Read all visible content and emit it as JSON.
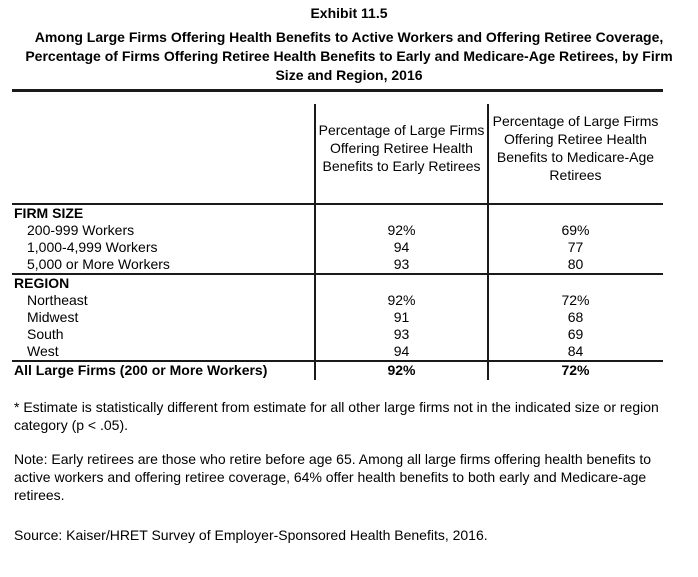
{
  "header": {
    "exhibit": "Exhibit 11.5",
    "title_lines": [
      "Among Large Firms Offering Health Benefits to Active Workers and Offering Retiree Coverage,",
      "Percentage of Firms Offering Retiree Health Benefits to Early and Medicare-Age Retirees, by Firm",
      "Size and Region, 2016"
    ]
  },
  "table": {
    "columns": {
      "early": "Percentage of Large Firms Offering Retiree Health Benefits to Early Retirees",
      "medicare": "Percentage of Large Firms Offering Retiree Health Benefits to Medicare-Age Retirees"
    },
    "rows": [
      {
        "label": "FIRM SIZE",
        "type": "section",
        "early": "",
        "medicare": ""
      },
      {
        "label": "200-999 Workers",
        "type": "data",
        "early": "92%",
        "medicare": "69%"
      },
      {
        "label": "1,000-4,999 Workers",
        "type": "data",
        "early": "94",
        "medicare": "77"
      },
      {
        "label": "5,000 or More Workers",
        "type": "data",
        "early": "93",
        "medicare": "80"
      },
      {
        "label": "REGION",
        "type": "section",
        "early": "",
        "medicare": ""
      },
      {
        "label": "Northeast",
        "type": "data",
        "early": "92%",
        "medicare": "72%"
      },
      {
        "label": "Midwest",
        "type": "data",
        "early": "91",
        "medicare": "68"
      },
      {
        "label": "South",
        "type": "data",
        "early": "93",
        "medicare": "69"
      },
      {
        "label": "West",
        "type": "data",
        "early": "94",
        "medicare": "84"
      },
      {
        "label": "All Large Firms (200 or More Workers)",
        "type": "total",
        "early": "92%",
        "medicare": "72%"
      }
    ]
  },
  "footnotes": {
    "significance": "* Estimate is statistically different from estimate for all other large firms not in the indicated size or region category (p < .05).",
    "note": "Note: Early retirees are those who retire before age 65. Among all large firms offering health benefits to active workers and offering retiree coverage, 64% offer health benefits to both early and Medicare-age retirees.",
    "source": "Source: Kaiser/HRET Survey of Employer-Sponsored Health Benefits, 2016."
  },
  "colors": {
    "text": "#000000",
    "rule": "#1a1a1a",
    "background": "#ffffff"
  }
}
